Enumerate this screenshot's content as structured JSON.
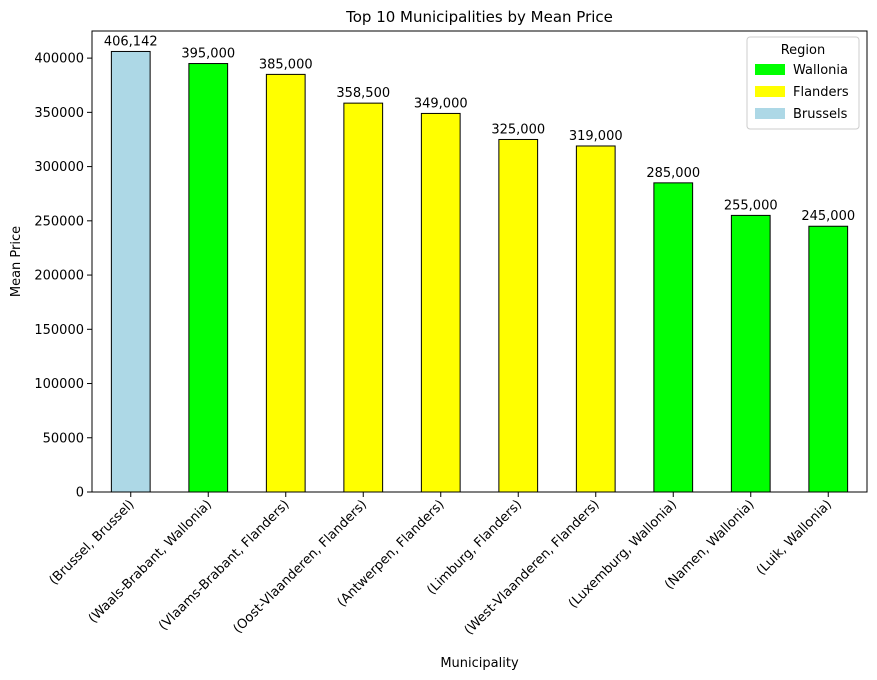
{
  "chart_data": {
    "type": "bar",
    "title": "Top 10 Municipalities by Mean Price",
    "xlabel": "Municipality",
    "ylabel": "Mean Price",
    "ylim": [
      0,
      425000
    ],
    "yticks": [
      0,
      50000,
      100000,
      150000,
      200000,
      250000,
      300000,
      350000,
      400000
    ],
    "ytick_labels": [
      "0",
      "50000",
      "100000",
      "150000",
      "200000",
      "250000",
      "300000",
      "350000",
      "400000"
    ],
    "categories": [
      "(Brussel, Brussel)",
      "(Waals-Brabant, Wallonia)",
      "(Vlaams-Brabant, Flanders)",
      "(Oost-Vlaanderen, Flanders)",
      "(Antwerpen, Flanders)",
      "(Limburg, Flanders)",
      "(West-Vlaanderen, Flanders)",
      "(Luxemburg, Wallonia)",
      "(Namen, Wallonia)",
      "(Luik, Wallonia)"
    ],
    "values": [
      406142,
      395000,
      385000,
      358500,
      349000,
      325000,
      319000,
      285000,
      255000,
      245000
    ],
    "value_labels": [
      "406,142",
      "395,000",
      "385,000",
      "358,500",
      "349,000",
      "325,000",
      "319,000",
      "285,000",
      "255,000",
      "245,000"
    ],
    "regions": [
      "Brussels",
      "Wallonia",
      "Flanders",
      "Flanders",
      "Flanders",
      "Flanders",
      "Flanders",
      "Wallonia",
      "Wallonia",
      "Wallonia"
    ],
    "legend": {
      "title": "Region",
      "placement": "top-right",
      "entries": [
        {
          "label": "Wallonia",
          "color": "#00ff00"
        },
        {
          "label": "Flanders",
          "color": "#ffff00"
        },
        {
          "label": "Brussels",
          "color": "#add8e6"
        }
      ]
    },
    "grid": false
  }
}
